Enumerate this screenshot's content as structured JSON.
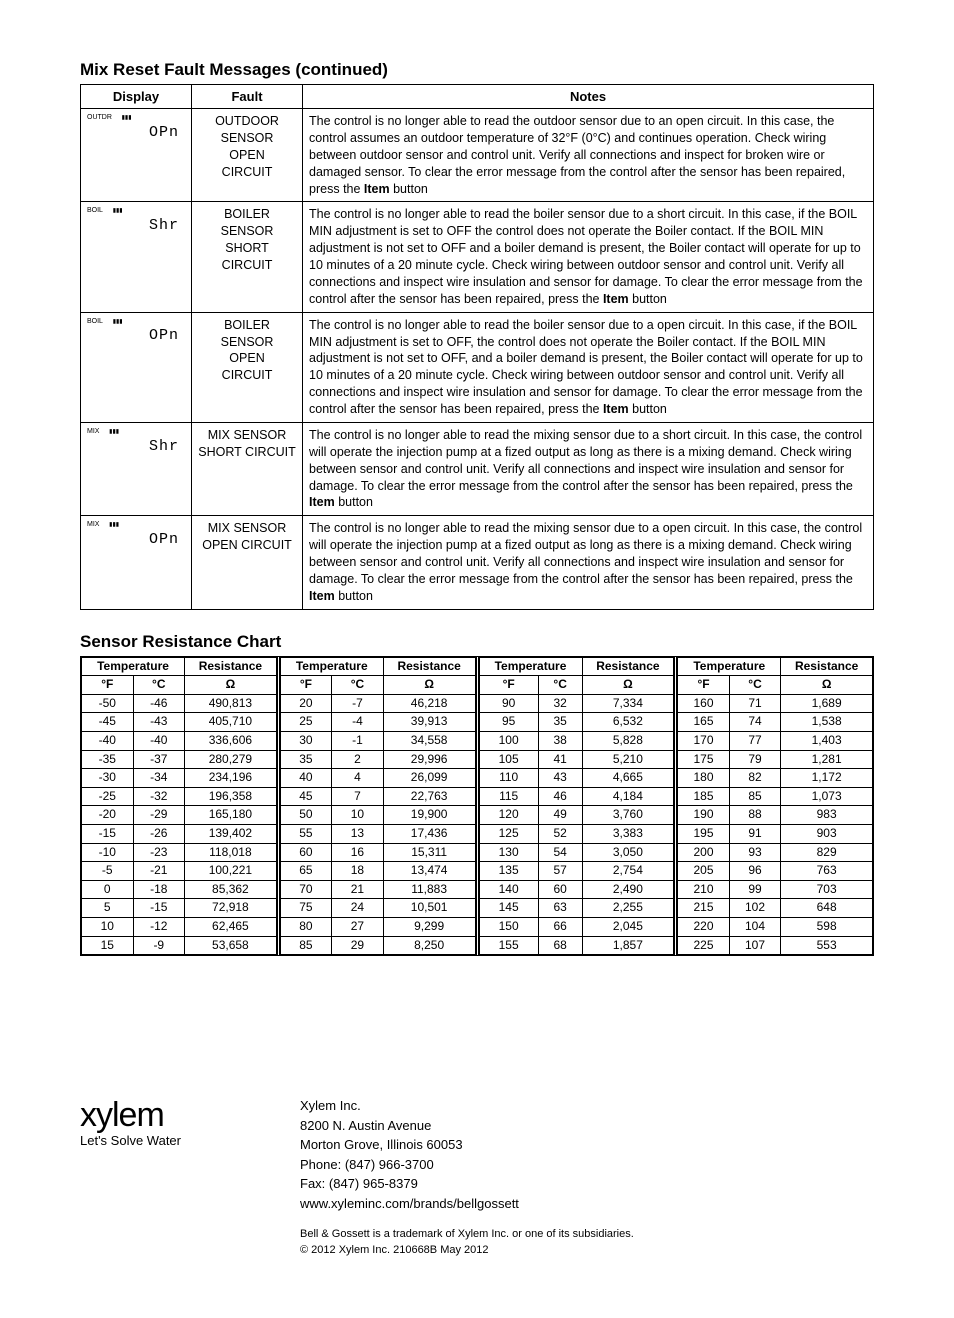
{
  "title1": "Mix Reset Fault Messages (continued)",
  "fault_headers": {
    "display": "Display",
    "fault": "Fault",
    "notes": "Notes"
  },
  "faults": [
    {
      "disp_top": "OUTDR",
      "disp_seg": "OPn",
      "fault": "OUTDOOR SENSOR OPEN CIRCUIT",
      "notes": "The control is no longer able to read the outdoor sensor due to an open circuit. In this case, the control assumes an outdoor temperature of 32°F (0°C) and continues operation. Check wiring between outdoor sensor and control unit. Verify all connections and inspect for broken wire or damaged sensor. To clear the error message from the control after the sensor has been repaired, press the ",
      "btn": "Item",
      "tail": " button"
    },
    {
      "disp_top": "BOIL",
      "disp_seg": "Shr",
      "fault": "BOILER SENSOR SHORT CIRCUIT",
      "notes": "The control is no longer able to read the boiler sensor due to a short circuit. In this case, if the BOIL MIN adjustment is set to OFF the control does not operate the Boiler contact. If the BOIL MIN adjustment is not set to OFF and a boiler demand is present, the Boiler contact will operate for up to 10 minutes of a 20 minute cycle. Check wiring between outdoor sensor and control unit. Verify all connections and inspect wire insulation and sensor for damage. To clear the error message from the control after the sensor has been repaired, press the ",
      "btn": "Item",
      "tail": " button"
    },
    {
      "disp_top": "BOIL",
      "disp_seg": "OPn",
      "fault": "BOILER SENSOR OPEN CIRCUIT",
      "notes": "The control is no longer able to read the boiler sensor due to a open circuit. In this case, if the BOIL MIN adjustment is set to OFF, the control does not operate the Boiler contact. If the BOIL MIN adjustment is not set to OFF, and a boiler demand is present, the Boiler contact will operate for up to 10 minutes of a 20 minute cycle. Check wiring between outdoor sensor and control unit. Verify all connections and inspect wire insulation and sensor for damage. To clear the error message from the control after the sensor has been repaired, press the ",
      "btn": "Item",
      "tail": " button"
    },
    {
      "disp_top": "MIX",
      "disp_seg": "Shr",
      "fault": "MIX SENSOR SHORT CIRCUIT",
      "notes": "The control is no longer able to read the mixing sensor due to a short circuit. In this case, the control will operate the injection pump at a fized output as long as there is a mixing demand. Check wiring between sensor and control unit. Verify all connections and inspect wire insulation and sensor for damage. To clear the error message from the control after the sensor has been repaired, press the ",
      "btn": "Item",
      "tail": " button"
    },
    {
      "disp_top": "MIX",
      "disp_seg": "OPn",
      "fault": "MIX SENSOR OPEN CIRCUIT",
      "notes": "The control is no longer able to read the mixing sensor due to a open circuit. In this case, the control will operate the injection pump at a fized output as long as there is a mixing demand. Check wiring between sensor and control unit. Verify all connections and inspect wire insulation and sensor for damage. To clear the error message from the control after the sensor has been repaired, press the ",
      "btn": "Item",
      "tail": " button"
    }
  ],
  "title2": "Sensor Resistance Chart",
  "res_headers": {
    "temp": "Temperature",
    "res": "Resistance",
    "f": "°F",
    "c": "°C",
    "ohm": "Ω"
  },
  "res_blocks": [
    [
      [
        "-50",
        "-46",
        "490,813"
      ],
      [
        "-45",
        "-43",
        "405,710"
      ],
      [
        "-40",
        "-40",
        "336,606"
      ],
      [
        "-35",
        "-37",
        "280,279"
      ],
      [
        "-30",
        "-34",
        "234,196"
      ],
      [
        "-25",
        "-32",
        "196,358"
      ],
      [
        "-20",
        "-29",
        "165,180"
      ],
      [
        "-15",
        "-26",
        "139,402"
      ],
      [
        "-10",
        "-23",
        "118,018"
      ],
      [
        "-5",
        "-21",
        "100,221"
      ],
      [
        "0",
        "-18",
        "85,362"
      ],
      [
        "5",
        "-15",
        "72,918"
      ],
      [
        "10",
        "-12",
        "62,465"
      ],
      [
        "15",
        "-9",
        "53,658"
      ]
    ],
    [
      [
        "20",
        "-7",
        "46,218"
      ],
      [
        "25",
        "-4",
        "39,913"
      ],
      [
        "30",
        "-1",
        "34,558"
      ],
      [
        "35",
        "2",
        "29,996"
      ],
      [
        "40",
        "4",
        "26,099"
      ],
      [
        "45",
        "7",
        "22,763"
      ],
      [
        "50",
        "10",
        "19,900"
      ],
      [
        "55",
        "13",
        "17,436"
      ],
      [
        "60",
        "16",
        "15,311"
      ],
      [
        "65",
        "18",
        "13,474"
      ],
      [
        "70",
        "21",
        "11,883"
      ],
      [
        "75",
        "24",
        "10,501"
      ],
      [
        "80",
        "27",
        "9,299"
      ],
      [
        "85",
        "29",
        "8,250"
      ]
    ],
    [
      [
        "90",
        "32",
        "7,334"
      ],
      [
        "95",
        "35",
        "6,532"
      ],
      [
        "100",
        "38",
        "5,828"
      ],
      [
        "105",
        "41",
        "5,210"
      ],
      [
        "110",
        "43",
        "4,665"
      ],
      [
        "115",
        "46",
        "4,184"
      ],
      [
        "120",
        "49",
        "3,760"
      ],
      [
        "125",
        "52",
        "3,383"
      ],
      [
        "130",
        "54",
        "3,050"
      ],
      [
        "135",
        "57",
        "2,754"
      ],
      [
        "140",
        "60",
        "2,490"
      ],
      [
        "145",
        "63",
        "2,255"
      ],
      [
        "150",
        "66",
        "2,045"
      ],
      [
        "155",
        "68",
        "1,857"
      ]
    ],
    [
      [
        "160",
        "71",
        "1,689"
      ],
      [
        "165",
        "74",
        "1,538"
      ],
      [
        "170",
        "77",
        "1,403"
      ],
      [
        "175",
        "79",
        "1,281"
      ],
      [
        "180",
        "82",
        "1,172"
      ],
      [
        "185",
        "85",
        "1,073"
      ],
      [
        "190",
        "88",
        "983"
      ],
      [
        "195",
        "91",
        "903"
      ],
      [
        "200",
        "93",
        "829"
      ],
      [
        "205",
        "96",
        "763"
      ],
      [
        "210",
        "99",
        "703"
      ],
      [
        "215",
        "102",
        "648"
      ],
      [
        "220",
        "104",
        "598"
      ],
      [
        "225",
        "107",
        "553"
      ]
    ]
  ],
  "logo": {
    "name": "xylem",
    "tag": "Let's Solve Water"
  },
  "addr": {
    "company": "Xylem Inc.",
    "street": "8200 N. Austin Avenue",
    "city": "Morton Grove, Illinois 60053",
    "phone": "Phone: (847) 966-3700",
    "fax": "Fax: (847) 965-8379",
    "web": "www.xyleminc.com/brands/bellgossett"
  },
  "fine": {
    "l1": "Bell & Gossett is a trademark of Xylem Inc. or one of its subsidiaries.",
    "l2": "© 2012 Xylem Inc.   210668B   May 2012"
  }
}
